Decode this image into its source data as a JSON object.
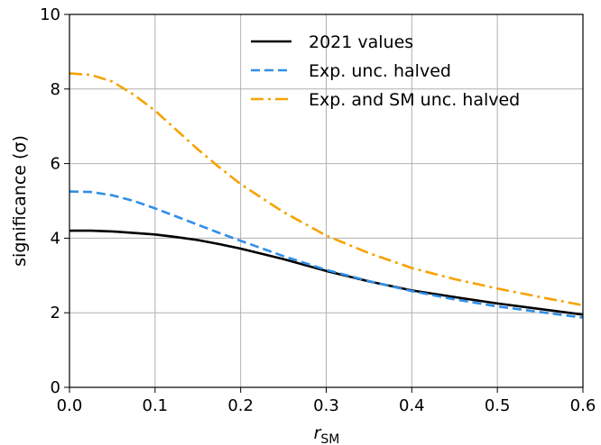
{
  "chart_data": {
    "type": "line",
    "xlabel": "r_SM",
    "xlabel_main": "r",
    "xlabel_sub": "SM",
    "ylabel": "significance  (σ)",
    "xlim": [
      0.0,
      0.6
    ],
    "ylim": [
      0,
      10
    ],
    "xticks": [
      0.0,
      0.1,
      0.2,
      0.3,
      0.4,
      0.5,
      0.6
    ],
    "xtick_labels": [
      "0.0",
      "0.1",
      "0.2",
      "0.3",
      "0.4",
      "0.5",
      "0.6"
    ],
    "yticks": [
      0,
      2,
      4,
      6,
      8,
      10
    ],
    "ytick_labels": [
      "0",
      "2",
      "4",
      "6",
      "8",
      "10"
    ],
    "grid": true,
    "legend_position": "top-right",
    "series": [
      {
        "name": "2021 values",
        "color": "#000000",
        "style": "solid",
        "x": [
          0.0,
          0.025,
          0.05,
          0.075,
          0.1,
          0.125,
          0.15,
          0.175,
          0.2,
          0.25,
          0.3,
          0.35,
          0.4,
          0.45,
          0.5,
          0.55,
          0.6
        ],
        "y": [
          4.2,
          4.2,
          4.18,
          4.14,
          4.1,
          4.03,
          3.95,
          3.84,
          3.72,
          3.44,
          3.12,
          2.84,
          2.6,
          2.42,
          2.25,
          2.1,
          1.95
        ]
      },
      {
        "name": "Exp. unc. halved",
        "color": "#2f8ee8",
        "style": "dashed",
        "x": [
          0.0,
          0.025,
          0.05,
          0.075,
          0.1,
          0.125,
          0.15,
          0.175,
          0.2,
          0.25,
          0.3,
          0.35,
          0.4,
          0.45,
          0.5,
          0.55,
          0.6
        ],
        "y": [
          5.25,
          5.24,
          5.15,
          5.0,
          4.8,
          4.58,
          4.36,
          4.14,
          3.93,
          3.52,
          3.15,
          2.85,
          2.58,
          2.36,
          2.17,
          2.02,
          1.87
        ]
      },
      {
        "name": "Exp. and SM unc. halved",
        "color": "#f5a300",
        "style": "dashdot",
        "x": [
          0.0,
          0.025,
          0.05,
          0.075,
          0.1,
          0.125,
          0.15,
          0.175,
          0.2,
          0.25,
          0.3,
          0.35,
          0.4,
          0.45,
          0.5,
          0.55,
          0.6
        ],
        "y": [
          8.42,
          8.38,
          8.2,
          7.85,
          7.42,
          6.9,
          6.38,
          5.9,
          5.45,
          4.7,
          4.07,
          3.6,
          3.2,
          2.9,
          2.65,
          2.42,
          2.2
        ]
      }
    ]
  }
}
